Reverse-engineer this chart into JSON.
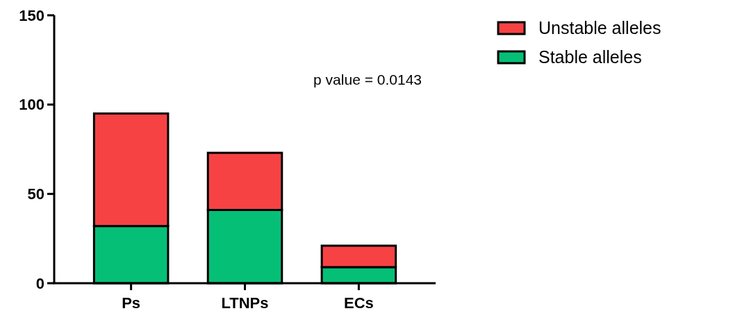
{
  "chart_data": {
    "type": "bar",
    "stacked": true,
    "categories": [
      "Ps",
      "LTNPs",
      "ECs"
    ],
    "series": [
      {
        "name": "Stable alleles",
        "color": "#06bf77",
        "values": [
          32,
          41,
          9
        ]
      },
      {
        "name": "Unstable alleles",
        "color": "#f74244",
        "values": [
          63,
          32,
          12
        ]
      }
    ],
    "ylim": [
      0,
      150
    ],
    "yticks": [
      0,
      50,
      100,
      150
    ],
    "grid": false,
    "legend": "top right",
    "annotations": [
      "p value = 0.0143"
    ]
  }
}
